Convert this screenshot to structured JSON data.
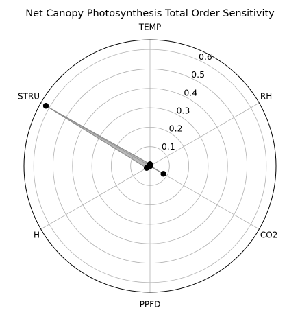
{
  "chart_data": {
    "type": "radar",
    "title": "Net Canopy Photosynthesis Total Order Sensitivity",
    "axes": [
      "TEMP",
      "RH",
      "CO2",
      "PPFD",
      "H",
      "STRU"
    ],
    "rlim": [
      0,
      0.65
    ],
    "r_ticks": [
      0.1,
      0.2,
      0.3,
      0.4,
      0.5,
      0.6
    ],
    "r_tick_labels": [
      "0.1",
      "0.2",
      "0.3",
      "0.4",
      "0.5",
      "0.6"
    ],
    "grid": true,
    "series": [
      {
        "values": [
          0.01,
          0.002,
          0.08,
          0.001,
          0.02,
          0.62
        ],
        "color": "#000000",
        "fill_color": "#808080"
      }
    ]
  }
}
